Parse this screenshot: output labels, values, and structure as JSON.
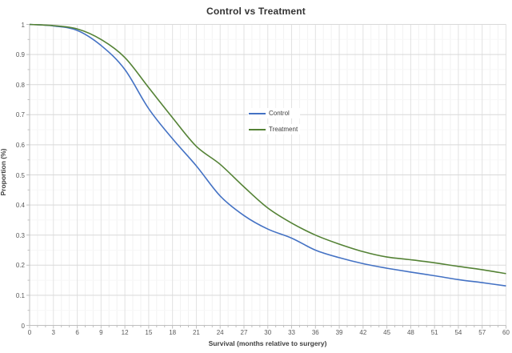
{
  "chart": {
    "title": "Control vs Treatment",
    "x_axis": {
      "label": "Survival (months relative to surgery)",
      "min": 0,
      "max": 60,
      "major_step": 3,
      "minor_step": 1,
      "tick_labels": [
        "0",
        "3",
        "6",
        "9",
        "12",
        "15",
        "18",
        "21",
        "24",
        "27",
        "30",
        "33",
        "36",
        "39",
        "42",
        "45",
        "48",
        "51",
        "54",
        "57",
        "60"
      ]
    },
    "y_axis": {
      "label": "Proportion (%)",
      "min": 0,
      "max": 1,
      "major_step": 0.1,
      "minor_step": 0.05,
      "tick_labels": [
        "0",
        "0.1",
        "0.2",
        "0.3",
        "0.4",
        "0.5",
        "0.6",
        "0.7",
        "0.8",
        "0.9",
        "1"
      ]
    },
    "legend": {
      "position": "center",
      "items": [
        {
          "label": "Control",
          "color": "#4472C4"
        },
        {
          "label": "Treatment",
          "color": "#548235"
        }
      ]
    },
    "colors": {
      "grid_major": "#D9D9D9",
      "grid_minor": "#F2F2F2",
      "axis_line": "#BFBFBF",
      "title_text": "#333333",
      "tick_text": "#595959"
    }
  },
  "chart_data": {
    "type": "line",
    "title": "Control vs Treatment",
    "xlabel": "Survival (months relative to surgery)",
    "ylabel": "Proportion (%)",
    "x": [
      0,
      3,
      6,
      9,
      12,
      15,
      18,
      21,
      24,
      27,
      30,
      33,
      36,
      39,
      42,
      45,
      48,
      51,
      54,
      57,
      60
    ],
    "series": [
      {
        "name": "Control",
        "color": "#4472C4",
        "values": [
          1.0,
          0.995,
          0.98,
          0.93,
          0.85,
          0.72,
          0.62,
          0.53,
          0.43,
          0.365,
          0.32,
          0.29,
          0.25,
          0.225,
          0.205,
          0.19,
          0.177,
          0.165,
          0.152,
          0.142,
          0.131
        ]
      },
      {
        "name": "Treatment",
        "color": "#548235",
        "values": [
          1.0,
          0.996,
          0.985,
          0.95,
          0.89,
          0.79,
          0.69,
          0.595,
          0.535,
          0.46,
          0.39,
          0.34,
          0.3,
          0.27,
          0.245,
          0.227,
          0.218,
          0.208,
          0.196,
          0.185,
          0.172
        ]
      }
    ],
    "xlim": [
      0,
      60
    ],
    "ylim": [
      0,
      1
    ],
    "grid": true,
    "legend_position": "center"
  }
}
